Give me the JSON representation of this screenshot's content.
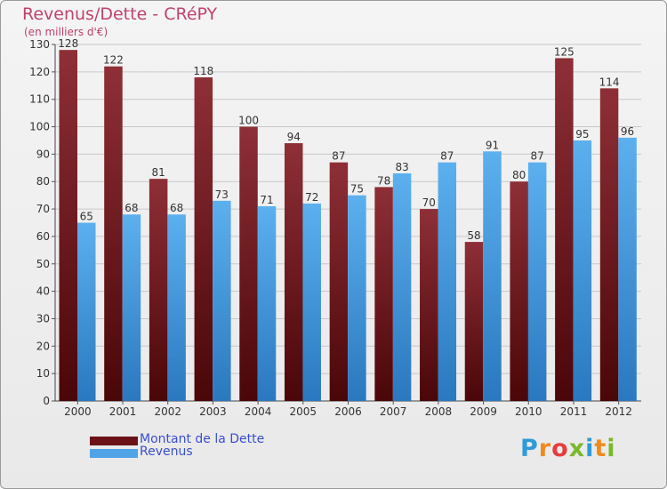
{
  "chart_data": {
    "type": "bar",
    "title": "Revenus/Dette - CRéPY",
    "subtitle": "(en milliers d'€)",
    "categories": [
      "2000",
      "2001",
      "2002",
      "2003",
      "2004",
      "2005",
      "2006",
      "2007",
      "2008",
      "2009",
      "2010",
      "2011",
      "2012"
    ],
    "series": [
      {
        "name": "Montant de la Dette",
        "color": "#7a1f26",
        "values": [
          128,
          122,
          81,
          118,
          100,
          94,
          87,
          78,
          70,
          58,
          80,
          125,
          114
        ]
      },
      {
        "name": "Revenus",
        "color": "#4fa3e6",
        "values": [
          65,
          68,
          68,
          73,
          71,
          72,
          75,
          83,
          87,
          91,
          87,
          95,
          96
        ]
      }
    ],
    "ylim": [
      0,
      130
    ],
    "yticks": [
      0,
      10,
      20,
      30,
      40,
      50,
      60,
      70,
      80,
      90,
      100,
      110,
      120,
      130
    ],
    "grid": true,
    "legend_position": "bottom-left"
  },
  "logo": {
    "text": "Proxiti",
    "letters": [
      {
        "ch": "P",
        "color": "#2f9ad8"
      },
      {
        "ch": "r",
        "color": "#f08a1c"
      },
      {
        "ch": "o",
        "color": "#e43d3d"
      },
      {
        "ch": "x",
        "color": "#7ab82a"
      },
      {
        "ch": "i",
        "color": "#2f9ad8"
      },
      {
        "ch": "t",
        "color": "#f08a1c"
      },
      {
        "ch": "i",
        "color": "#7ab82a"
      }
    ]
  }
}
